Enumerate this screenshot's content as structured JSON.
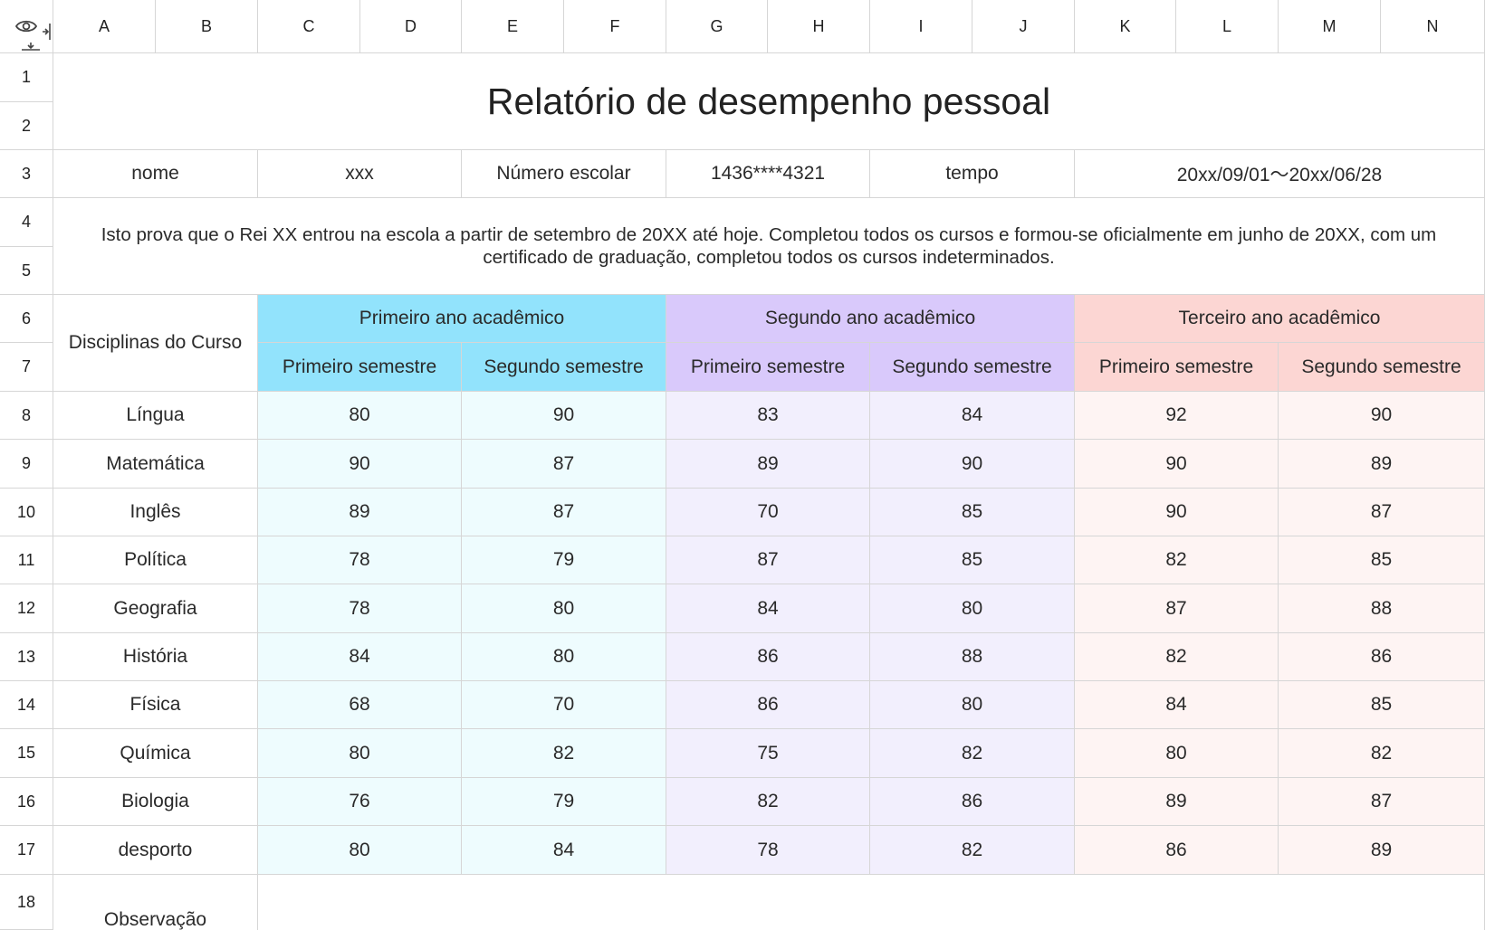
{
  "columns": [
    "A",
    "B",
    "C",
    "D",
    "E",
    "F",
    "G",
    "H",
    "I",
    "J",
    "K",
    "L",
    "M",
    "N"
  ],
  "rows": [
    "1",
    "2",
    "3",
    "4",
    "5",
    "6",
    "7",
    "8",
    "9",
    "10",
    "11",
    "12",
    "13",
    "14",
    "15",
    "16",
    "17",
    "18"
  ],
  "icons": {
    "corner_visibility": "eye-icon",
    "collapse_columns": "collapse-columns-icon",
    "collapse_rows": "collapse-rows-icon"
  },
  "colors": {
    "year1_header": "#92e3fc",
    "year2_header": "#d9c9fb",
    "year3_header": "#fcd6d3",
    "year1_cells": "#eefcfe",
    "year2_cells": "#f2effd",
    "year3_cells": "#fef4f3"
  },
  "report": {
    "title": "Relatório de desempenho pessoal",
    "info": {
      "name_label": "nome",
      "name_value": "xxx",
      "school_number_label": "Número escolar",
      "school_number_value": "1436****4321",
      "time_label": "tempo",
      "time_value": "20xx/09/01～20xx/06/28"
    },
    "statement": "Isto prova que o Rei XX entrou na escola a partir de setembro de 20XX até hoje. Completou todos os cursos e formou-se oficialmente em junho de 20XX, com um certificado de graduação, completou todos os cursos indeterminados.",
    "subjects_header": "Disciplinas do Curso",
    "years": [
      "Primeiro ano acadêmico",
      "Segundo ano acadêmico",
      "Terceiro ano acadêmico"
    ],
    "semesters": [
      "Primeiro semestre",
      "Segundo semestre",
      "Primeiro semestre",
      "Segundo semestre",
      "Primeiro semestre",
      "Segundo semestre"
    ],
    "grades": [
      {
        "subject": "Língua",
        "scores": [
          "80",
          "90",
          "83",
          "84",
          "92",
          "90"
        ]
      },
      {
        "subject": "Matemática",
        "scores": [
          "90",
          "87",
          "89",
          "90",
          "90",
          "89"
        ]
      },
      {
        "subject": "Inglês",
        "scores": [
          "89",
          "87",
          "70",
          "85",
          "90",
          "87"
        ]
      },
      {
        "subject": "Política",
        "scores": [
          "78",
          "79",
          "87",
          "85",
          "82",
          "85"
        ]
      },
      {
        "subject": "Geografia",
        "scores": [
          "78",
          "80",
          "84",
          "80",
          "87",
          "88"
        ]
      },
      {
        "subject": "História",
        "scores": [
          "84",
          "80",
          "86",
          "88",
          "82",
          "86"
        ]
      },
      {
        "subject": "Física",
        "scores": [
          "68",
          "70",
          "86",
          "80",
          "84",
          "85"
        ]
      },
      {
        "subject": "Química",
        "scores": [
          "80",
          "82",
          "75",
          "82",
          "80",
          "82"
        ]
      },
      {
        "subject": "Biologia",
        "scores": [
          "76",
          "79",
          "82",
          "86",
          "89",
          "87"
        ]
      },
      {
        "subject": "desporto",
        "scores": [
          "80",
          "84",
          "78",
          "82",
          "86",
          "89"
        ]
      }
    ],
    "observation_label": "Observação"
  }
}
